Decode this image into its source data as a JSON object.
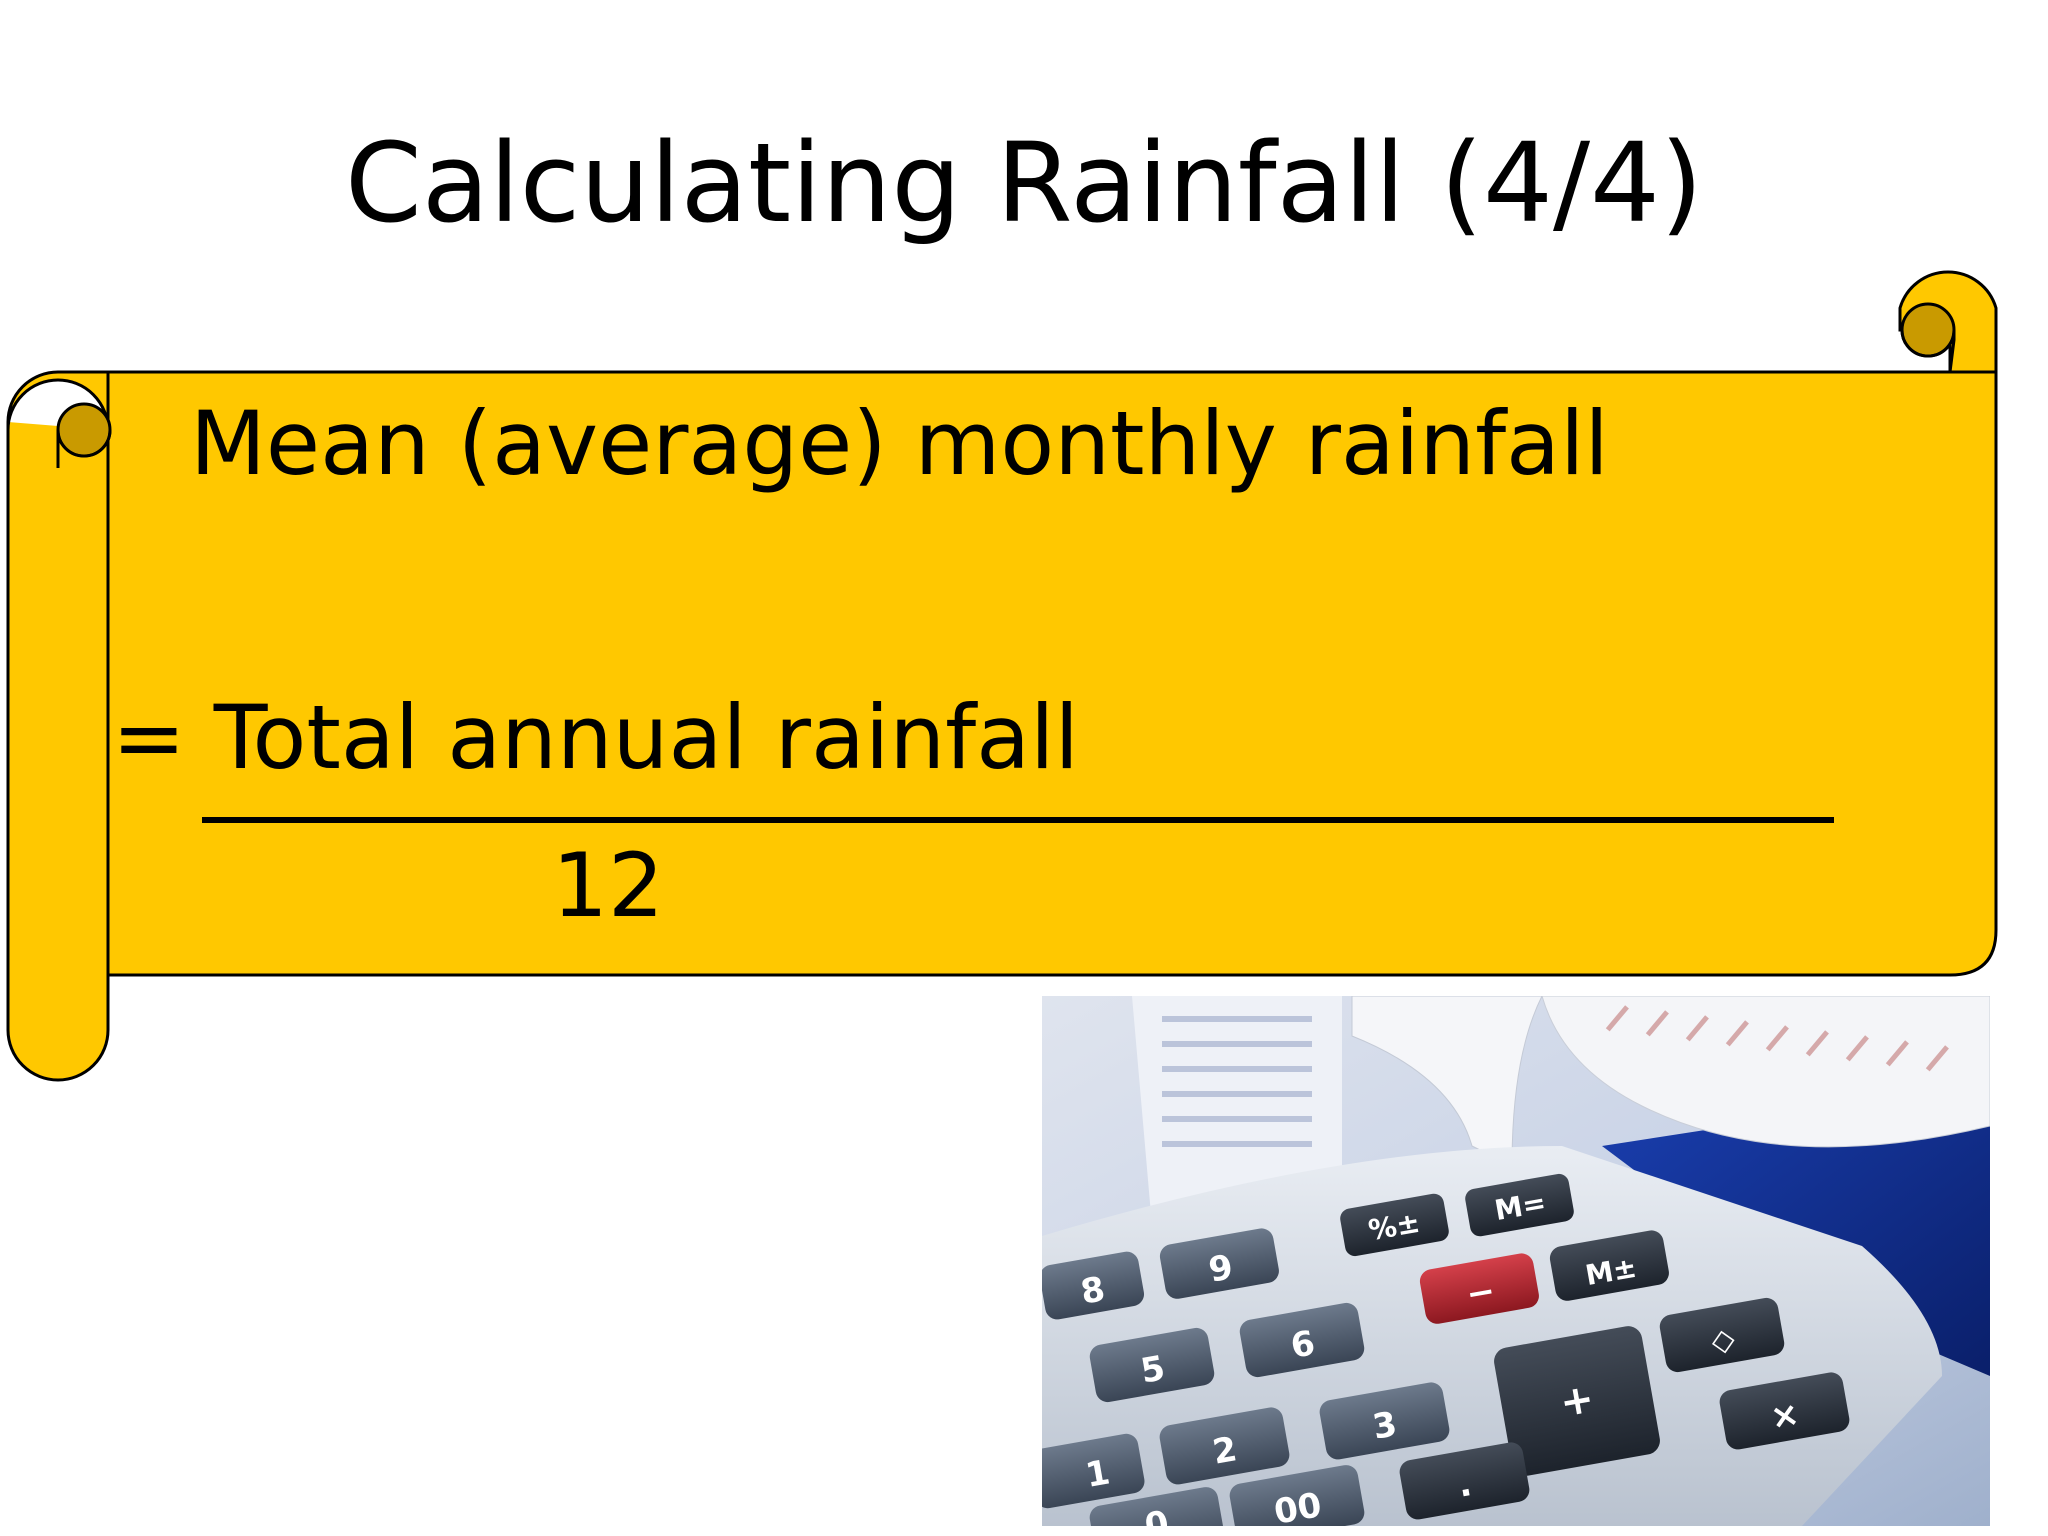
{
  "slide": {
    "title": "Calculating Rainfall (4/4)",
    "scroll": {
      "fill_color": "#FFC800",
      "line1": "Mean (average) monthly rainfall",
      "line2": "= Total annual rainfall",
      "denominator": "12"
    },
    "image": {
      "subject": "calculator with printed receipt roll",
      "keys": [
        "%±",
        "M=",
        "9",
        "8",
        "−",
        "M±",
        "6",
        "5",
        "◇",
        "3",
        "+",
        "2",
        "1",
        "×",
        "00",
        "0",
        "."
      ]
    }
  }
}
